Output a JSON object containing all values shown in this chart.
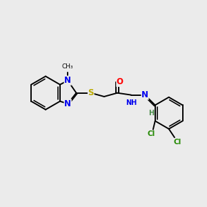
{
  "background_color": "#ebebeb",
  "fig_size": [
    3.0,
    3.0
  ],
  "dpi": 100,
  "bond_color": "#000000",
  "bond_lw": 1.4,
  "atoms": {
    "N": "#0000ee",
    "S": "#bbaa00",
    "O": "#ff0000",
    "Cl": "#228800",
    "C": "#000000",
    "H": "#448844"
  },
  "font_size": 8.5,
  "font_size_small": 7.0,
  "font_size_methyl": 6.5
}
